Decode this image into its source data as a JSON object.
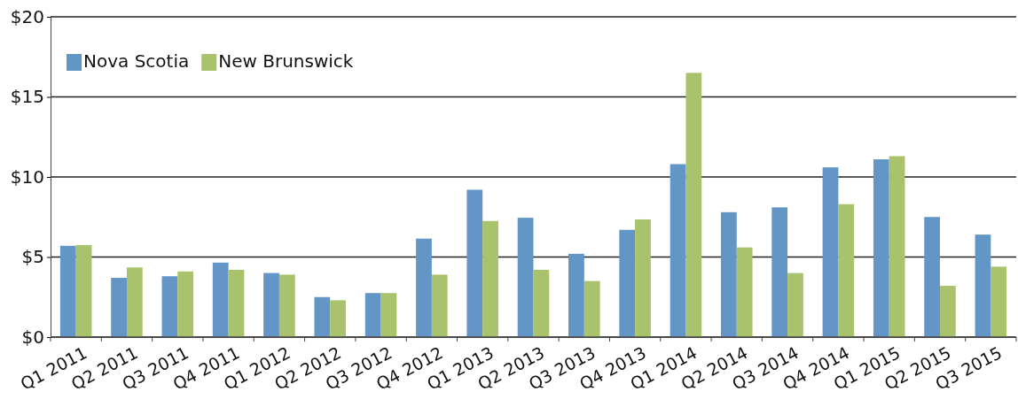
{
  "chart_data": {
    "type": "bar",
    "categories": [
      "Q1 2011",
      "Q2 2011",
      "Q3 2011",
      "Q4 2011",
      "Q1 2012",
      "Q2 2012",
      "Q3 2012",
      "Q4 2012",
      "Q1 2013",
      "Q2 2013",
      "Q3 2013",
      "Q4 2013",
      "Q1 2014",
      "Q2 2014",
      "Q3 2014",
      "Q4 2014",
      "Q1 2015",
      "Q2 2015",
      "Q3 2015"
    ],
    "series": [
      {
        "name": "Nova Scotia",
        "color": "#6395c7",
        "values": [
          5.7,
          3.7,
          3.8,
          4.65,
          4.0,
          2.5,
          2.75,
          6.15,
          9.2,
          7.45,
          5.2,
          6.7,
          10.8,
          7.8,
          8.1,
          10.6,
          11.1,
          7.5,
          6.4
        ]
      },
      {
        "name": "New Brunswick",
        "color": "#a8c36c",
        "values": [
          5.75,
          4.35,
          4.1,
          4.2,
          3.9,
          2.3,
          2.75,
          3.9,
          7.25,
          4.2,
          3.5,
          7.35,
          16.5,
          5.6,
          4.0,
          8.3,
          11.3,
          3.2,
          4.4
        ]
      }
    ],
    "ylim": [
      0,
      20
    ],
    "yticks": [
      {
        "value": 0,
        "label": "$0"
      },
      {
        "value": 5,
        "label": "$5"
      },
      {
        "value": 10,
        "label": "$10"
      },
      {
        "value": 15,
        "label": "$15"
      },
      {
        "value": 20,
        "label": "$20"
      }
    ],
    "grid": "y",
    "legend": "top left"
  }
}
